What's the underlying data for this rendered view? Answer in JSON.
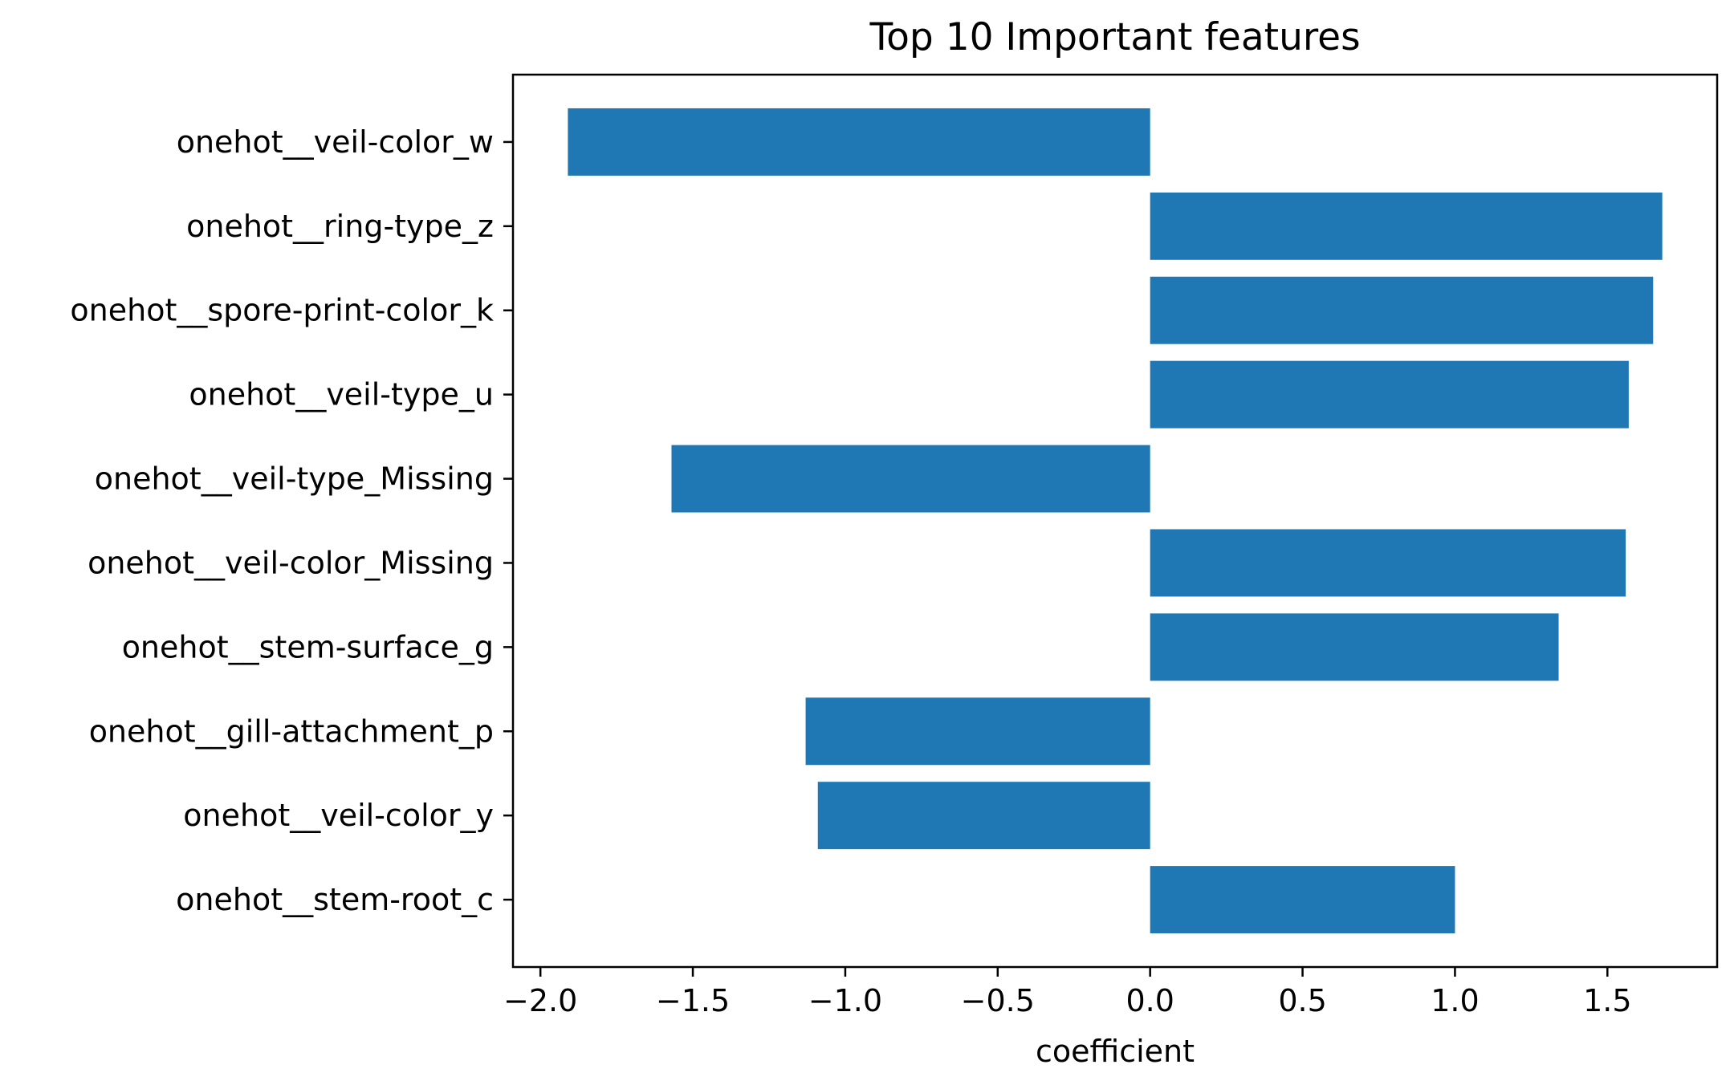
{
  "colors": {
    "bar": "#1f77b4",
    "axis": "#000000",
    "background": "#ffffff"
  },
  "chart_data": {
    "type": "bar",
    "orientation": "horizontal",
    "title": "Top 10 Important features",
    "xlabel": "coefficient",
    "ylabel": "",
    "xlim": [
      -2.09,
      1.86
    ],
    "x_ticks": [
      -2.0,
      -1.5,
      -1.0,
      -0.5,
      0.0,
      0.5,
      1.0,
      1.5
    ],
    "x_tick_labels": [
      "−2.0",
      "−1.5",
      "−1.0",
      "−0.5",
      "0.0",
      "0.5",
      "1.0",
      "1.5"
    ],
    "grid": false,
    "legend": "none",
    "categories": [
      "onehot__veil-color_w",
      "onehot__ring-type_z",
      "onehot__spore-print-color_k",
      "onehot__veil-type_u",
      "onehot__veil-type_Missing",
      "onehot__veil-color_Missing",
      "onehot__stem-surface_g",
      "onehot__gill-attachment_p",
      "onehot__veil-color_y",
      "onehot__stem-root_c"
    ],
    "values": [
      -1.91,
      1.68,
      1.65,
      1.57,
      -1.57,
      1.56,
      1.34,
      -1.13,
      -1.09,
      1.0
    ]
  }
}
